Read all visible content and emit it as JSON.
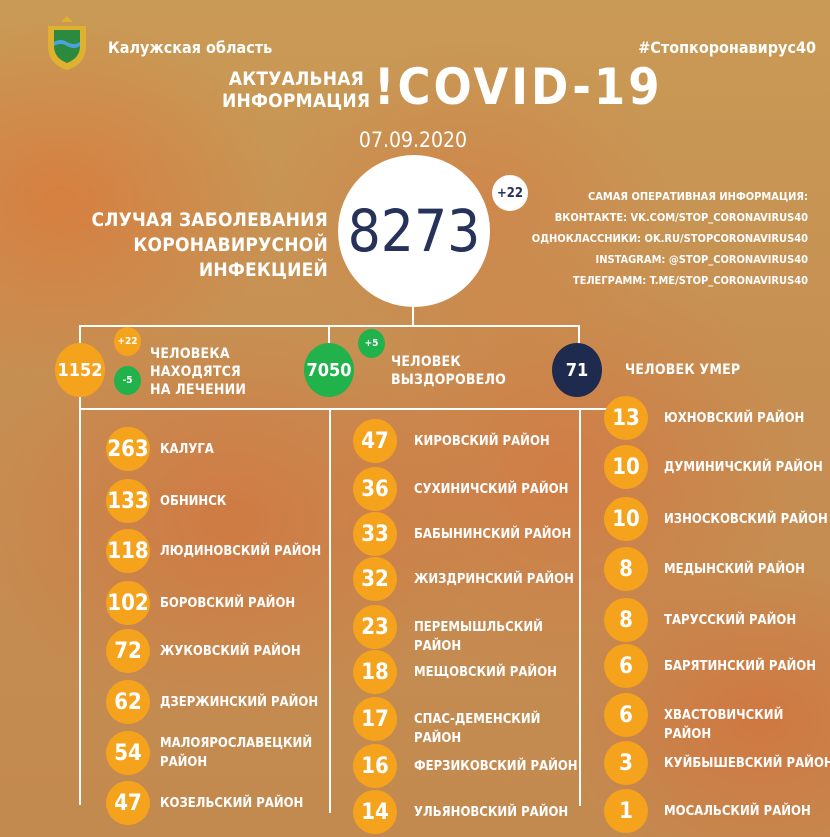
{
  "header": {
    "region": "Калужская область",
    "hashtag": "#Стопкоронавирус40",
    "subtitle_line1": "АКТУАЛЬНАЯ",
    "subtitle_line2": "ИНФОРМАЦИЯ",
    "title": "!COVID-19",
    "date": "07.09.2020"
  },
  "total": {
    "label_line1": "СЛУЧАЯ ЗАБОЛЕВАНИЯ",
    "label_line2": "КОРОНАВИРУСНОЙ ИНФЕКЦИЕЙ",
    "value": "8273",
    "delta": "+22"
  },
  "info": {
    "heading": "САМАЯ ОПЕРАТИВНАЯ ИНФОРМАЦИЯ:",
    "lines": [
      "ВКОНТАКТЕ: VK.COM/STOP_CORONAVIRUS40",
      "ОДНОКЛАССНИКИ: OK.RU/STOPCORONAVIRUS40",
      "INSTAGRAM: @STOP_CORONAVIRUS40",
      "ТЕЛЕГРАММ: T.ME/STOP_CORONAVIRUS40"
    ]
  },
  "colors": {
    "orange": "#f5a31c",
    "green": "#22b24c",
    "navy": "#1e2a4e"
  },
  "status": {
    "treatment": {
      "value": "1152",
      "delta_up": "+22",
      "delta_down": "-5",
      "label_line1": "ЧЕЛОВЕКА",
      "label_line2": "НАХОДЯТСЯ",
      "label_line3": "НА ЛЕЧЕНИИ"
    },
    "recovered": {
      "value": "7050",
      "delta": "+5",
      "label_line1": "ЧЕЛОВЕК",
      "label_line2": "ВЫЗДОРОВЕЛО"
    },
    "died": {
      "value": "71",
      "label": "ЧЕЛОВЕК УМЕР"
    }
  },
  "districts": {
    "col1": [
      {
        "value": "263",
        "name": "КАЛУГА"
      },
      {
        "value": "133",
        "name": "ОБНИНСК"
      },
      {
        "value": "118",
        "name": "ЛЮДИНОВСКИЙ РАЙОН"
      },
      {
        "value": "102",
        "name": "БОРОВСКИЙ РАЙОН"
      },
      {
        "value": "72",
        "name": "ЖУКОВСКИЙ РАЙОН"
      },
      {
        "value": "62",
        "name": "ДЗЕРЖИНСКИЙ РАЙОН"
      },
      {
        "value": "54",
        "name": "МАЛОЯРОСЛАВЕЦКИЙ РАЙОН"
      },
      {
        "value": "47",
        "name": "КОЗЕЛЬСКИЙ РАЙОН"
      }
    ],
    "col2": [
      {
        "value": "47",
        "name": "КИРОВСКИЙ РАЙОН"
      },
      {
        "value": "36",
        "name": "СУХИНИЧСКИЙ РАЙОН"
      },
      {
        "value": "33",
        "name": "БАБЫНИНСКИЙ РАЙОН"
      },
      {
        "value": "32",
        "name": "ЖИЗДРИНСКИЙ РАЙОН"
      },
      {
        "value": "23",
        "name": "ПЕРЕМЫШЛЬСКИЙ РАЙОН"
      },
      {
        "value": "18",
        "name": "МЕЩОВСКИЙ РАЙОН"
      },
      {
        "value": "17",
        "name": "СПАС-ДЕМЕНСКИЙ РАЙОН"
      },
      {
        "value": "16",
        "name": "ФЕРЗИКОВСКИЙ РАЙОН"
      },
      {
        "value": "14",
        "name": "УЛЬЯНОВСКИЙ РАЙОН"
      }
    ],
    "col3": [
      {
        "value": "13",
        "name": "ЮХНОВСКИЙ РАЙОН"
      },
      {
        "value": "10",
        "name": "ДУМИНИЧСКИЙ РАЙОН"
      },
      {
        "value": "10",
        "name": "ИЗНОСКОВСКИЙ РАЙОН"
      },
      {
        "value": "8",
        "name": "МЕДЫНСКИЙ РАЙОН"
      },
      {
        "value": "8",
        "name": "ТАРУССКИЙ РАЙОН"
      },
      {
        "value": "6",
        "name": "БАРЯТИНСКИЙ РАЙОН"
      },
      {
        "value": "6",
        "name": "ХВАСТОВИЧСКИЙ РАЙОН"
      },
      {
        "value": "3",
        "name": "КУЙБЫШЕВСКИЙ РАЙОН"
      },
      {
        "value": "1",
        "name": "МОСАЛЬСКИЙ РАЙОН"
      }
    ]
  }
}
